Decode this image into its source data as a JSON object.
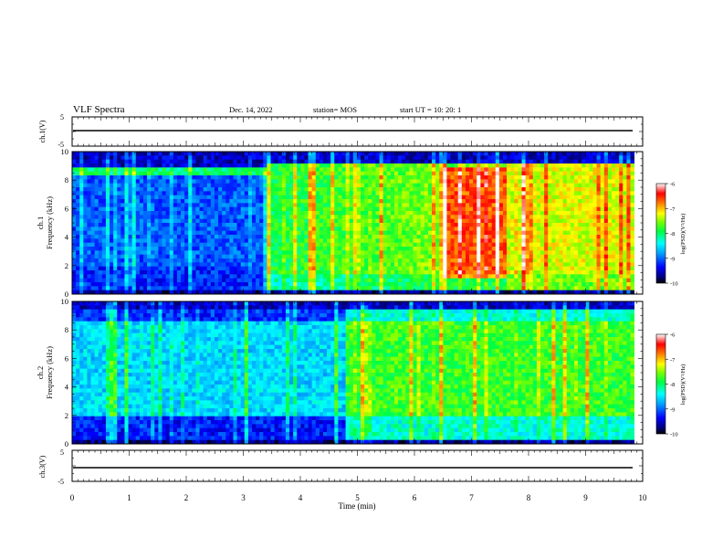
{
  "header": {
    "title": "VLF Spectra",
    "date": "Dec. 14, 2022",
    "station": "station= MOS",
    "start": "start  UT =   10: 20: 1"
  },
  "chart_data": [
    {
      "type": "line",
      "name": "ch1_voltage",
      "ylabel": "ch.1(V)",
      "ylim": [
        -5,
        5
      ],
      "yticks": [
        "5",
        "-5"
      ],
      "level": 0
    },
    {
      "type": "heatmap",
      "name": "ch1_spectrogram",
      "ylabel_channel": "ch.1",
      "ylabel": "Frequency (kHz)",
      "ylim": [
        0,
        10
      ],
      "yticks": [
        "0",
        "2",
        "4",
        "6",
        "8",
        "10"
      ],
      "colorbar": {
        "label": "log(PSD)(V²/Hz)",
        "range": [
          -10,
          -6
        ],
        "ticks": [
          "-6",
          "-7",
          "-8",
          "-9",
          "-10"
        ]
      },
      "regions_time_min": [
        {
          "t": [
            0,
            3.4
          ],
          "level": "dark-blue and green, bright vertical bursts"
        },
        {
          "t": [
            3.4,
            6.5
          ],
          "level": "green-yellow"
        },
        {
          "t": [
            6.5,
            7.6
          ],
          "level": "red-orange, peak -7 to -6.5"
        },
        {
          "t": [
            7.6,
            9.85
          ],
          "level": "yellow-orange"
        }
      ]
    },
    {
      "type": "heatmap",
      "name": "ch2_spectrogram",
      "ylabel_channel": "ch.2",
      "ylabel": "Frequency (kHz)",
      "ylim": [
        0,
        10
      ],
      "yticks": [
        "0",
        "2",
        "4",
        "6",
        "8",
        "10"
      ],
      "colorbar": {
        "label": "log(PSD)(V²/Hz)",
        "range": [
          -10,
          -6
        ],
        "ticks": [
          "-6",
          "-7",
          "-8",
          "-9",
          "-10"
        ]
      },
      "regions_time_min": [
        {
          "t": [
            0,
            4.8
          ],
          "level": "blue-cyan with bright vertical bursts"
        },
        {
          "t": [
            4.8,
            9.85
          ],
          "level": "green-yellow, cyan below 2 kHz"
        }
      ]
    },
    {
      "type": "line",
      "name": "ch3_voltage",
      "ylabel": "ch.3(V)",
      "ylim": [
        -5,
        5
      ],
      "yticks": [
        "5",
        "-5"
      ],
      "level": 0
    }
  ],
  "xaxis": {
    "label": "Time (min)",
    "range": [
      0,
      10
    ],
    "ticks": [
      "0",
      "1",
      "2",
      "3",
      "4",
      "5",
      "6",
      "7",
      "8",
      "9",
      "10"
    ]
  }
}
